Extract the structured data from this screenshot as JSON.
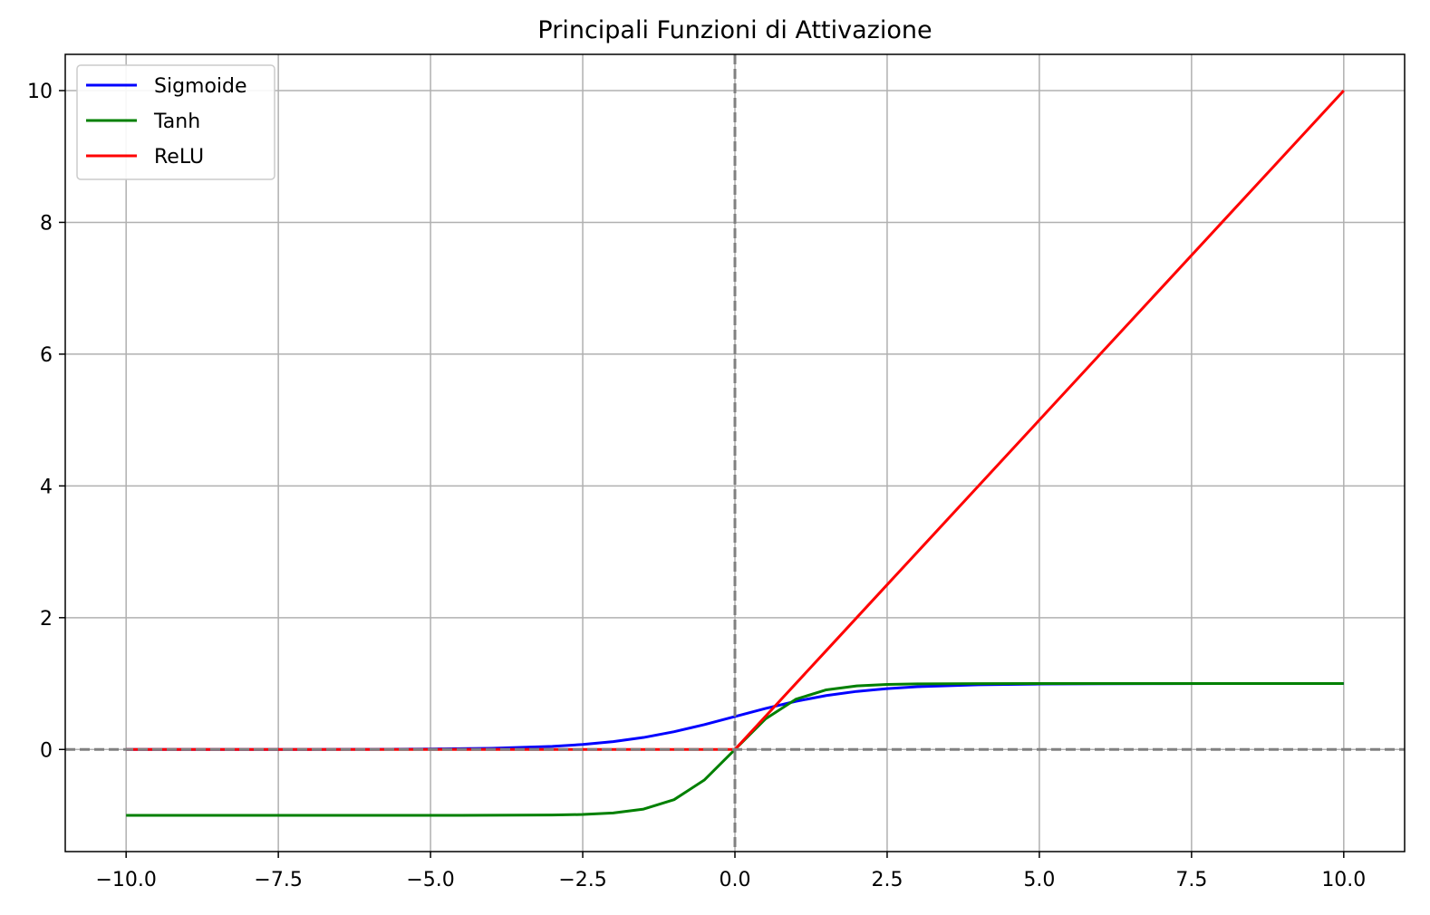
{
  "chart_data": {
    "type": "line",
    "title": "Principali Funzioni di Attivazione",
    "xlabel": "",
    "ylabel": "",
    "xlim": [
      -11.0,
      11.0
    ],
    "ylim": [
      -1.55,
      10.55
    ],
    "x_ticks": [
      -10.0,
      -7.5,
      -5.0,
      -2.5,
      0.0,
      2.5,
      5.0,
      7.5,
      10.0
    ],
    "x_tick_labels": [
      "−10.0",
      "−7.5",
      "−5.0",
      "−2.5",
      "0.0",
      "2.5",
      "5.0",
      "7.5",
      "10.0"
    ],
    "y_ticks": [
      0,
      2,
      4,
      6,
      8,
      10
    ],
    "y_tick_labels": [
      "0",
      "2",
      "4",
      "6",
      "8",
      "10"
    ],
    "grid": true,
    "legend_position": "top-left",
    "reference_lines": [
      {
        "orientation": "horizontal",
        "value": 0,
        "style": "dashed",
        "color": "#808080"
      },
      {
        "orientation": "vertical",
        "value": 0,
        "style": "dashed",
        "color": "#808080"
      }
    ],
    "x": [
      -10,
      -9,
      -8,
      -7,
      -6,
      -5,
      -4,
      -3,
      -2.5,
      -2,
      -1.5,
      -1,
      -0.5,
      0,
      0.5,
      1,
      1.5,
      2,
      2.5,
      3,
      4,
      5,
      6,
      7,
      8,
      9,
      10
    ],
    "series": [
      {
        "name": "Sigmoide",
        "color": "#0000ff",
        "values": [
          5e-05,
          0.00012,
          0.00034,
          0.0009,
          0.0025,
          0.0067,
          0.018,
          0.047,
          0.076,
          0.119,
          0.182,
          0.269,
          0.378,
          0.5,
          0.622,
          0.731,
          0.818,
          0.881,
          0.924,
          0.953,
          0.982,
          0.993,
          0.998,
          0.999,
          1.0,
          1.0,
          1.0
        ]
      },
      {
        "name": "Tanh",
        "color": "#008000",
        "values": [
          -1.0,
          -1.0,
          -1.0,
          -1.0,
          -1.0,
          -1.0,
          -0.999,
          -0.995,
          -0.987,
          -0.964,
          -0.905,
          -0.762,
          -0.462,
          0.0,
          0.462,
          0.762,
          0.905,
          0.964,
          0.987,
          0.995,
          0.999,
          1.0,
          1.0,
          1.0,
          1.0,
          1.0,
          1.0
        ]
      },
      {
        "name": "ReLU",
        "color": "#ff0000",
        "values": [
          0,
          0,
          0,
          0,
          0,
          0,
          0,
          0,
          0,
          0,
          0,
          0,
          0,
          0,
          0.5,
          1,
          1.5,
          2,
          2.5,
          3,
          4,
          5,
          6,
          7,
          8,
          9,
          10
        ]
      }
    ]
  }
}
